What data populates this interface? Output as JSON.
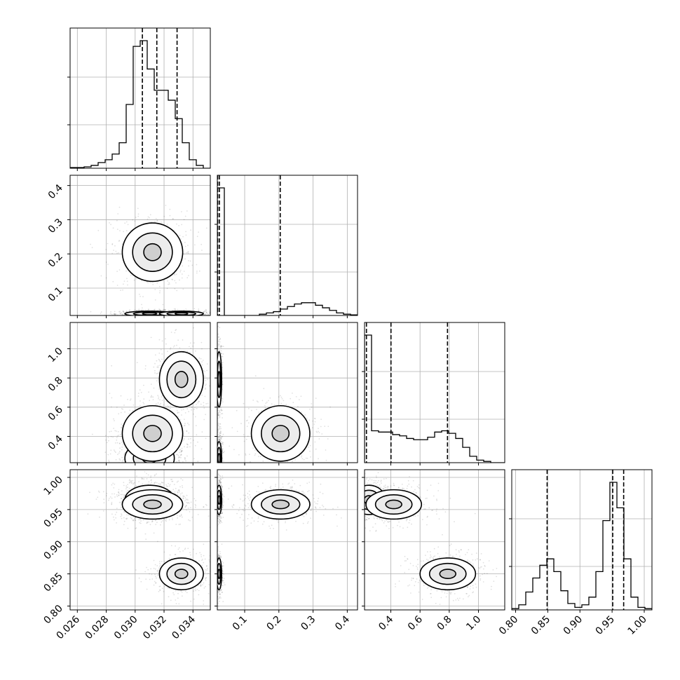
{
  "chart_data": {
    "type": "corner",
    "parameters": [
      {
        "range": [
          0.0255,
          0.0352
        ],
        "ticks": [
          0.026,
          0.028,
          0.03,
          0.032,
          0.034
        ],
        "tick_labels": [
          "0.026",
          "0.028",
          "0.030",
          "0.032",
          "0.034"
        ],
        "quantiles": [
          0.0305,
          0.0315,
          0.0329
        ],
        "hist": {
          "edges_start": 0.0255,
          "bin_width": 0.000485,
          "counts": [
            0.5,
            0.5,
            1,
            2,
            4,
            6,
            10,
            18,
            45,
            86,
            90,
            70,
            55,
            55,
            48,
            35,
            18,
            6,
            2,
            0
          ]
        }
      },
      {
        "range": [
          0.02,
          0.43
        ],
        "ticks": [
          0.1,
          0.2,
          0.3,
          0.4
        ],
        "tick_labels": [
          "0.1",
          "0.2",
          "0.3",
          "0.4"
        ],
        "quantiles": [
          0.021,
          0.026,
          0.204
        ],
        "hist": {
          "edges_start": 0.02,
          "bin_width": 0.0205,
          "counts": [
            100,
            0,
            0,
            0,
            0,
            0,
            1,
            2,
            3,
            5,
            7,
            9,
            10,
            10,
            8,
            6,
            4,
            2,
            1,
            0.5
          ]
        }
      },
      {
        "range": [
          0.22,
          1.18
        ],
        "ticks": [
          0.4,
          0.6,
          0.8,
          1.0
        ],
        "tick_labels": [
          "0.4",
          "0.6",
          "0.8",
          "1.0"
        ],
        "quantiles": [
          0.233,
          0.401,
          0.788
        ],
        "hist": {
          "edges_start": 0.22,
          "bin_width": 0.048,
          "counts": [
            100,
            25,
            24,
            24,
            22,
            21,
            19,
            18,
            18,
            20,
            24,
            25,
            23,
            19,
            12,
            5,
            2,
            1,
            0,
            0
          ]
        }
      },
      {
        "range": [
          0.794,
          1.012
        ],
        "ticks": [
          0.8,
          0.85,
          0.9,
          0.95,
          1.0
        ],
        "tick_labels": [
          "0.80",
          "0.85",
          "0.90",
          "0.95",
          "1.00"
        ],
        "quantiles": [
          0.849,
          0.951,
          0.968
        ],
        "hist": {
          "edges_start": 0.794,
          "bin_width": 0.0109,
          "counts": [
            1,
            4,
            14,
            25,
            35,
            40,
            30,
            15,
            5,
            2,
            4,
            10,
            30,
            70,
            100,
            80,
            40,
            10,
            2,
            1
          ]
        }
      }
    ],
    "modes": [
      {
        "means": [
          0.031,
          0.025,
          0.25,
          0.965
        ],
        "sds": [
          0.0009,
          0.004,
          0.06,
          0.012
        ],
        "weight": 0.4
      },
      {
        "means": [
          0.0312,
          0.205,
          0.42,
          0.958
        ],
        "sds": [
          0.0011,
          0.045,
          0.1,
          0.012
        ],
        "weight": 0.3
      },
      {
        "means": [
          0.0332,
          0.025,
          0.79,
          0.85
        ],
        "sds": [
          0.0008,
          0.004,
          0.1,
          0.013
        ],
        "weight": 0.3
      }
    ]
  }
}
